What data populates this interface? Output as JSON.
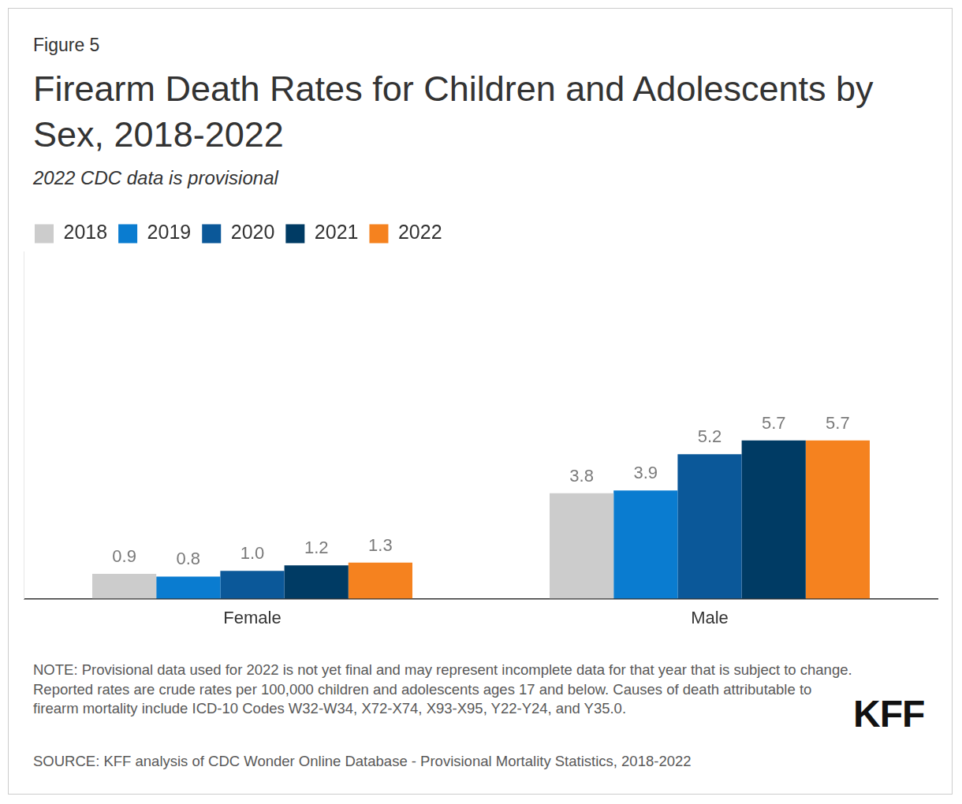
{
  "figure_label": "Figure 5",
  "note": "NOTE: Provisional data used for 2022 is not yet final and may represent incomplete data for that year that is subject to change. Reported rates are crude rates per 100,000 children and adolescents ages 17 and below. Causes of death attributable to firearm mortality include ICD-10 Codes W32-W34, X72-X74, X93-X95, Y22-Y24, and Y35.0.",
  "source": "SOURCE: KFF analysis of CDC Wonder Online Database - Provisional Mortality Statistics, 2018-2022",
  "logo": "KFF",
  "chart_data": {
    "type": "bar",
    "title": "Firearm Death Rates for Children and Adolescents by Sex, 2018-2022",
    "subtitle": "2022 CDC data is provisional",
    "categories": [
      "Female",
      "Male"
    ],
    "series": [
      {
        "name": "2018",
        "color": "#cccccc",
        "values": [
          0.9,
          3.8
        ]
      },
      {
        "name": "2019",
        "color": "#0a7cd0",
        "values": [
          0.8,
          3.9
        ]
      },
      {
        "name": "2020",
        "color": "#0b5899",
        "values": [
          1.0,
          5.2
        ],
        "value_labels": [
          "1.0",
          "5.2"
        ]
      },
      {
        "name": "2021",
        "color": "#003b64",
        "values": [
          1.2,
          5.7
        ]
      },
      {
        "name": "2022",
        "color": "#f5821f",
        "values": [
          1.3,
          5.7
        ]
      }
    ],
    "ylim": [
      0,
      12.5
    ],
    "grid": false,
    "legend": "top-left",
    "data_labels": true,
    "tick_labels": "x"
  }
}
